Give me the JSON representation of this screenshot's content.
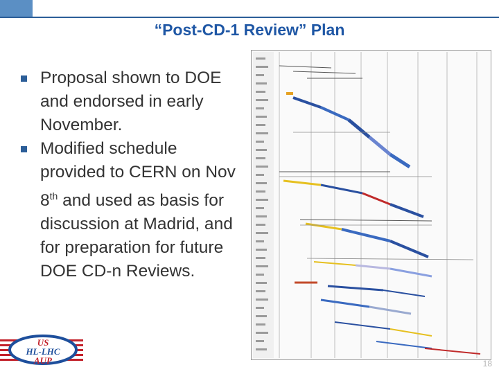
{
  "slide": {
    "title": "“Post-CD-1 Review” Plan",
    "bullets": [
      {
        "text_before": "Proposal shown to DOE and endorsed in early November.",
        "superscript": "",
        "text_after": ""
      },
      {
        "text_before": "Modified schedule provided to CERN on Nov 8",
        "superscript": "th",
        "text_after": " and used as basis for discussion at Madrid, and for preparation for future DOE CD-n Reviews."
      }
    ],
    "page_number": "18"
  },
  "logo": {
    "line1": "US",
    "line2": "HL-LHC",
    "line3": "AUP"
  },
  "colors": {
    "title": "#1f57a5",
    "accent": "#2c5e98",
    "text": "#333333",
    "logo_red": "#c3222b",
    "logo_blue": "#1e4f9c"
  }
}
